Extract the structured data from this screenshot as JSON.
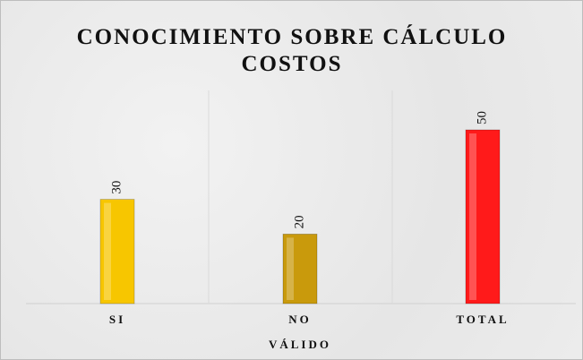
{
  "chart_data": {
    "type": "bar",
    "title": "CONOCIMIENTO SOBRE CÁLCULO COSTOS",
    "categories": [
      "SI",
      "NO",
      "TOTAL"
    ],
    "values": [
      30,
      20,
      50
    ],
    "colors": [
      "#f7c600",
      "#c99a0c",
      "#ff1a1a"
    ],
    "xlabel": "VÁLIDO"
  }
}
